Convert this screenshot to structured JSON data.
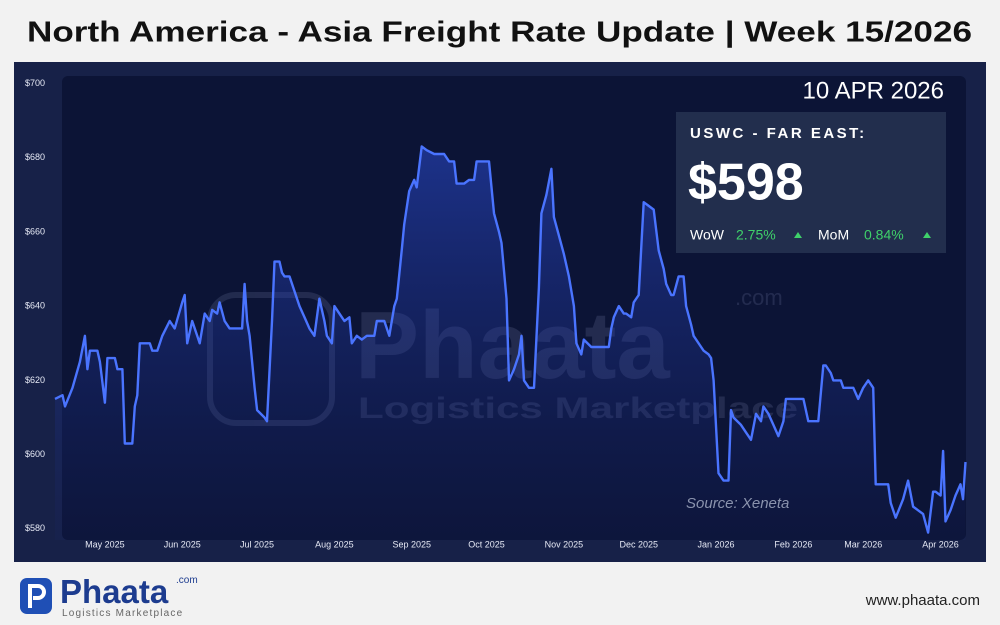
{
  "header": {
    "title": "North America - Asia Freight Rate Update | Week 15/2026"
  },
  "chart_data": {
    "type": "line",
    "date": "10 APR 2026",
    "source": "Source: Xeneta",
    "watermark": {
      "brand": "Phaata",
      "suffix": ".com",
      "tagline": "Logistics Marketplace"
    },
    "card": {
      "route": "USWC - FAR EAST:",
      "price": "$598",
      "wow_label": "WoW",
      "wow": "2.75%",
      "mom_label": "MoM",
      "mom": "0.84%"
    },
    "color": "#4a74ff",
    "xlim": [
      10,
      376
    ],
    "xticks": [
      {
        "value": 30,
        "label": "May 2025"
      },
      {
        "value": 61,
        "label": "Jun 2025"
      },
      {
        "value": 91,
        "label": "Jul 2025"
      },
      {
        "value": 122,
        "label": "Aug 2025"
      },
      {
        "value": 153,
        "label": "Sep 2025"
      },
      {
        "value": 183,
        "label": "Oct 2025"
      },
      {
        "value": 214,
        "label": "Nov 2025"
      },
      {
        "value": 244,
        "label": "Dec 2025"
      },
      {
        "value": 275,
        "label": "Jan 2026"
      },
      {
        "value": 306,
        "label": "Feb 2026"
      },
      {
        "value": 334,
        "label": "Mar 2026"
      },
      {
        "value": 365,
        "label": "Apr 2026"
      }
    ],
    "ylim": [
      577,
      702
    ],
    "yticks": [
      {
        "value": 580,
        "label": "$580"
      },
      {
        "value": 600,
        "label": "$600"
      },
      {
        "value": 620,
        "label": "$620"
      },
      {
        "value": 640,
        "label": "$640"
      },
      {
        "value": 660,
        "label": "$660"
      },
      {
        "value": 680,
        "label": "$680"
      },
      {
        "value": 700,
        "label": "$700"
      }
    ],
    "x": [
      10,
      13,
      14,
      17,
      20,
      22,
      23,
      24,
      27,
      28,
      30,
      31,
      34,
      35,
      37,
      38,
      41,
      42,
      43,
      44,
      48,
      49,
      51,
      53,
      56,
      58,
      61,
      62,
      63,
      65,
      67,
      68,
      70,
      72,
      73,
      75,
      76,
      78,
      80,
      83,
      85,
      86,
      87,
      88,
      90,
      91,
      94,
      95,
      97,
      98,
      100,
      101,
      102,
      104,
      106,
      108,
      110,
      112,
      114,
      116,
      118,
      119,
      121,
      122,
      124,
      126,
      128,
      129,
      131,
      133,
      135,
      138,
      139,
      142,
      144,
      146,
      147,
      149,
      150,
      152,
      154,
      155,
      157,
      159,
      162,
      164,
      166,
      168,
      170,
      171,
      174,
      176,
      178,
      179,
      180,
      182,
      184,
      186,
      188,
      189,
      191,
      192,
      194,
      196,
      197,
      198,
      200,
      202,
      204,
      205,
      207,
      209,
      210,
      212,
      214,
      216,
      218,
      219,
      221,
      222,
      225,
      227,
      230,
      232,
      233,
      234,
      236,
      238,
      239,
      241,
      242,
      244,
      246,
      248,
      250,
      252,
      254,
      255,
      257,
      258,
      260,
      262,
      263,
      265,
      266,
      269,
      270,
      272,
      273,
      274,
      276,
      278,
      280,
      281,
      282,
      285,
      287,
      289,
      291,
      293,
      294,
      296,
      298,
      300,
      302,
      303,
      306,
      308,
      310,
      312,
      316,
      318,
      319,
      321,
      322,
      325,
      326,
      328,
      330,
      332,
      334,
      336,
      338,
      339,
      341,
      344,
      345,
      347,
      350,
      352,
      354,
      356,
      358,
      360,
      362,
      363,
      365,
      366,
      367,
      369,
      371,
      373,
      374,
      375
    ],
    "values": [
      615,
      616,
      613,
      618,
      625,
      632,
      623,
      628,
      628,
      625,
      614,
      626,
      626,
      623,
      623,
      603,
      603,
      613,
      616,
      630,
      630,
      628,
      628,
      632,
      636,
      634,
      641,
      643,
      630,
      636,
      632,
      630,
      638,
      636,
      639,
      638,
      641,
      636,
      634,
      634,
      634,
      646,
      636,
      632,
      618,
      612,
      610,
      609,
      636,
      652,
      652,
      649,
      648,
      648,
      644,
      640,
      637,
      634,
      632,
      642,
      636,
      632,
      630,
      640,
      638,
      636,
      637,
      630,
      632,
      631,
      632,
      632,
      636,
      636,
      632,
      640,
      642,
      655,
      662,
      671,
      674,
      672,
      683,
      682,
      681,
      681,
      681,
      679,
      679,
      673,
      673,
      674,
      674,
      679,
      679,
      679,
      679,
      665,
      660,
      657,
      642,
      620,
      623,
      627,
      632,
      620,
      618,
      618,
      645,
      665,
      670,
      677,
      664,
      659,
      654,
      648,
      640,
      630,
      627,
      631,
      629,
      629,
      629,
      629,
      634,
      637,
      640,
      638,
      638,
      637,
      641,
      643,
      668,
      667,
      666,
      655,
      650,
      646,
      643,
      643,
      648,
      648,
      640,
      635,
      632,
      629,
      628,
      627,
      626,
      620,
      595,
      593,
      593,
      612,
      610,
      608,
      606,
      604,
      611,
      609,
      613,
      611,
      608,
      605,
      609,
      615,
      615,
      615,
      615,
      609,
      609,
      624,
      624,
      622,
      620,
      620,
      618,
      618,
      618,
      615,
      618,
      620,
      618,
      592,
      592,
      592,
      587,
      583,
      588,
      593,
      586,
      585,
      584,
      579,
      590,
      590,
      589,
      601,
      582,
      585,
      589,
      592,
      588,
      598
    ]
  },
  "footer": {
    "brand": "Phaata",
    "suffix": ".com",
    "tagline": "Logistics Marketplace",
    "url": "www.phaata.com"
  }
}
